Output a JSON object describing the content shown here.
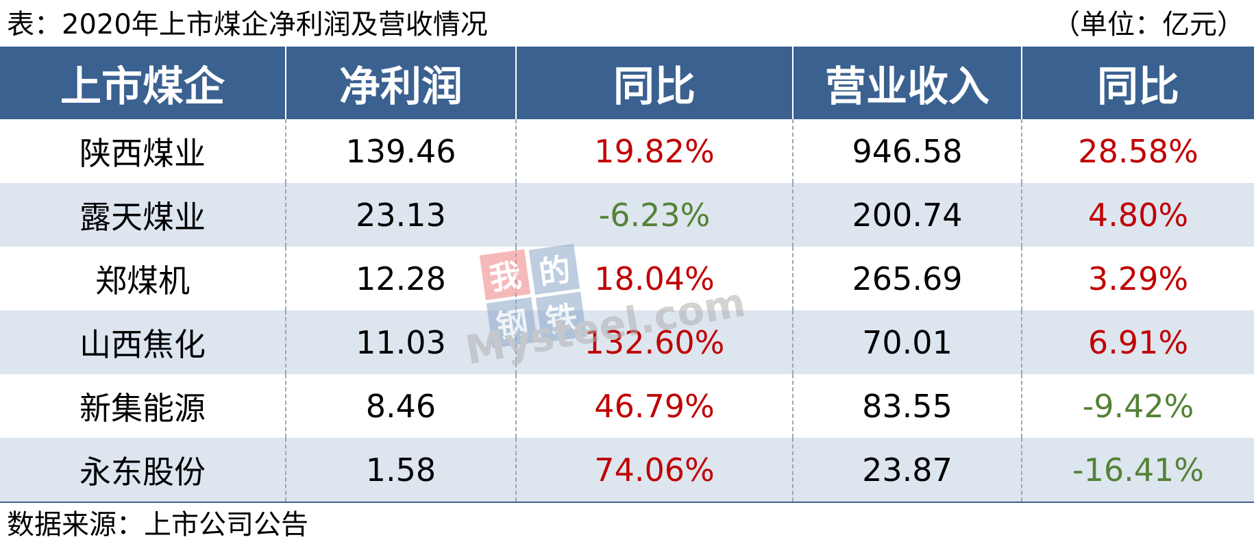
{
  "caption": "表：2020年上市煤企净利润及营收情况",
  "unit": "（单位：亿元）",
  "headers": [
    "上市煤企",
    "净利润",
    "同比",
    "营业收入",
    "同比"
  ],
  "rows": [
    {
      "company": "陕西煤业",
      "net_profit": "139.46",
      "net_profit_yoy": "19.82%",
      "revenue": "946.58",
      "revenue_yoy": "28.58%"
    },
    {
      "company": "露天煤业",
      "net_profit": "23.13",
      "net_profit_yoy": "-6.23%",
      "revenue": "200.74",
      "revenue_yoy": "4.80%"
    },
    {
      "company": "郑煤机",
      "net_profit": "12.28",
      "net_profit_yoy": "18.04%",
      "revenue": "265.69",
      "revenue_yoy": "3.29%"
    },
    {
      "company": "山西焦化",
      "net_profit": "11.03",
      "net_profit_yoy": "132.60%",
      "revenue": "70.01",
      "revenue_yoy": "6.91%"
    },
    {
      "company": "新集能源",
      "net_profit": "8.46",
      "net_profit_yoy": "46.79%",
      "revenue": "83.55",
      "revenue_yoy": "-9.42%"
    },
    {
      "company": "永东股份",
      "net_profit": "1.58",
      "net_profit_yoy": "74.06%",
      "revenue": "23.87",
      "revenue_yoy": "-16.41%"
    }
  ],
  "source": "数据来源：上市公司公告",
  "watermark": {
    "chars": [
      "我",
      "的",
      "钢",
      "铁"
    ],
    "text": "Mysteel.com"
  },
  "colors": {
    "header_bg": "#3a6190",
    "header_text": "#ffffff",
    "row_alt_bg": "#dde5ef",
    "positive": "#c00000",
    "negative": "#548235"
  }
}
